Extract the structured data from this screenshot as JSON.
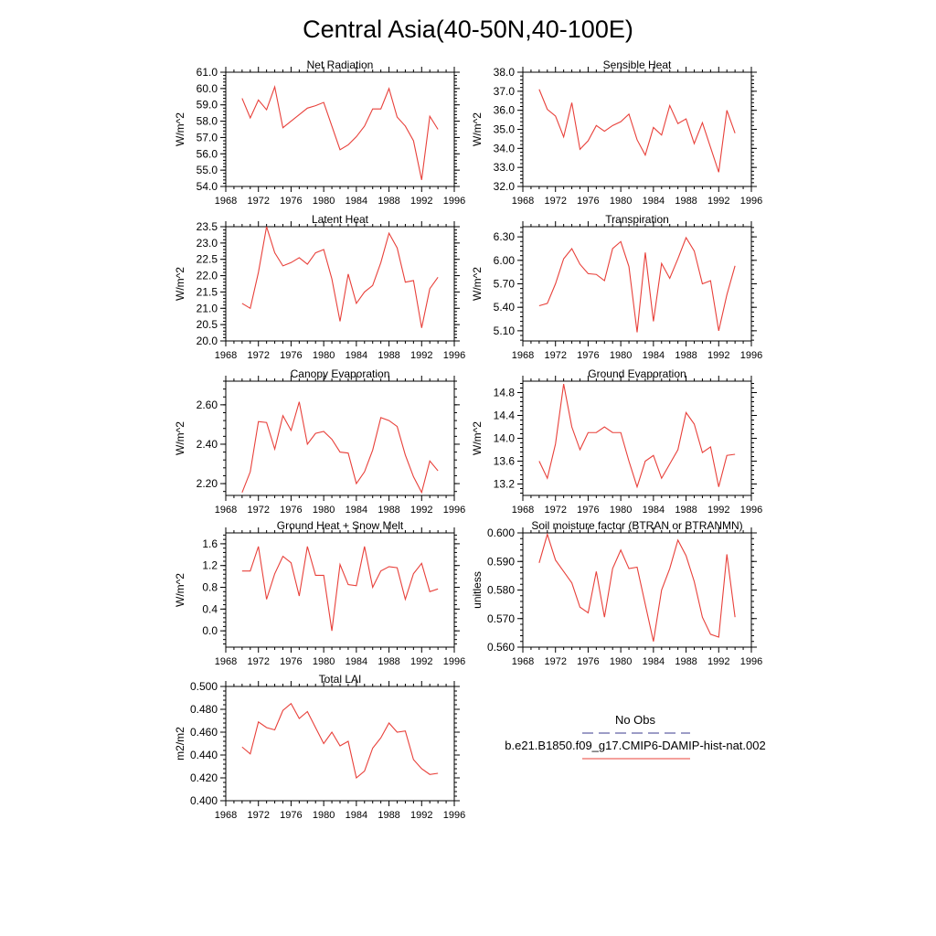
{
  "figure": {
    "title": "Central Asia(40-50N,40-100E)"
  },
  "legend": {
    "entries": [
      {
        "label": "No Obs",
        "color": "#3b3b8f",
        "dash": true
      },
      {
        "label": "b.e21.B1850.f09_g17.CMIP6-DAMIP-hist-nat.002",
        "color": "#e8403a",
        "dash": false
      }
    ]
  },
  "chart_data": [
    {
      "type": "line",
      "title": "Net Radiation",
      "ylabel": "W/m^2",
      "xlim": [
        1968,
        1996
      ],
      "ylim": [
        54.0,
        61.0
      ],
      "xticks": [
        "1968",
        "1972",
        "1976",
        "1980",
        "1984",
        "1988",
        "1992",
        "1996"
      ],
      "yticks": [
        "54.0",
        "55.0",
        "56.0",
        "57.0",
        "58.0",
        "59.0",
        "60.0",
        "61.0"
      ],
      "x": [
        1970,
        1971,
        1972,
        1973,
        1974,
        1975,
        1976,
        1977,
        1978,
        1979,
        1980,
        1981,
        1982,
        1983,
        1984,
        1985,
        1986,
        1987,
        1988,
        1989,
        1990,
        1991,
        1992,
        1993,
        1994
      ],
      "series": [
        {
          "color": "#e8403a",
          "values": [
            59.4,
            58.2,
            59.3,
            58.7,
            60.1,
            57.6,
            58.0,
            58.4,
            58.8,
            58.95,
            59.15,
            57.7,
            56.25,
            56.55,
            57.05,
            57.7,
            58.75,
            58.75,
            60.0,
            58.25,
            57.7,
            56.8,
            54.4,
            58.3,
            57.5
          ]
        }
      ]
    },
    {
      "type": "line",
      "title": "Sensible Heat",
      "ylabel": "W/m^2",
      "xlim": [
        1968,
        1996
      ],
      "ylim": [
        32.0,
        38.0
      ],
      "xticks": [
        "1968",
        "1972",
        "1976",
        "1980",
        "1984",
        "1988",
        "1992",
        "1996"
      ],
      "yticks": [
        "32.0",
        "33.0",
        "34.0",
        "35.0",
        "36.0",
        "37.0",
        "38.0"
      ],
      "x": [
        1970,
        1971,
        1972,
        1973,
        1974,
        1975,
        1976,
        1977,
        1978,
        1979,
        1980,
        1981,
        1982,
        1983,
        1984,
        1985,
        1986,
        1987,
        1988,
        1989,
        1990,
        1991,
        1992,
        1993,
        1994
      ],
      "series": [
        {
          "color": "#e8403a",
          "values": [
            37.1,
            36.05,
            35.7,
            34.6,
            36.4,
            33.95,
            34.4,
            35.2,
            34.9,
            35.2,
            35.4,
            35.8,
            34.45,
            33.65,
            35.1,
            34.7,
            36.25,
            35.3,
            35.55,
            34.25,
            35.35,
            34.05,
            32.75,
            36.0,
            34.8
          ]
        }
      ]
    },
    {
      "type": "line",
      "title": "Latent Heat",
      "ylabel": "W/m^2",
      "xlim": [
        1968,
        1996
      ],
      "ylim": [
        20.0,
        23.5
      ],
      "xticks": [
        "1968",
        "1972",
        "1976",
        "1980",
        "1984",
        "1988",
        "1992",
        "1996"
      ],
      "yticks": [
        "20.0",
        "20.5",
        "21.0",
        "21.5",
        "22.0",
        "22.5",
        "23.0",
        "23.5"
      ],
      "x": [
        1970,
        1971,
        1972,
        1973,
        1974,
        1975,
        1976,
        1977,
        1978,
        1979,
        1980,
        1981,
        1982,
        1983,
        1984,
        1985,
        1986,
        1987,
        1988,
        1989,
        1990,
        1991,
        1992,
        1993,
        1994
      ],
      "series": [
        {
          "color": "#e8403a",
          "values": [
            21.15,
            21.0,
            22.1,
            23.5,
            22.7,
            22.3,
            22.4,
            22.55,
            22.35,
            22.7,
            22.8,
            21.9,
            20.6,
            22.05,
            21.15,
            21.5,
            21.7,
            22.4,
            23.3,
            22.85,
            21.8,
            21.85,
            20.4,
            21.6,
            21.95
          ]
        }
      ]
    },
    {
      "type": "line",
      "title": "Transpiration",
      "ylabel": "W/m^2",
      "xlim": [
        1968,
        1996
      ],
      "ylim": [
        4.97,
        6.43
      ],
      "xticks": [
        "1968",
        "1972",
        "1976",
        "1980",
        "1984",
        "1988",
        "1992",
        "1996"
      ],
      "yticks": [
        "5.10",
        "5.40",
        "5.70",
        "6.00",
        "6.30"
      ],
      "x": [
        1970,
        1971,
        1972,
        1973,
        1974,
        1975,
        1976,
        1977,
        1978,
        1979,
        1980,
        1981,
        1982,
        1983,
        1984,
        1985,
        1986,
        1987,
        1988,
        1989,
        1990,
        1991,
        1992,
        1993,
        1994
      ],
      "series": [
        {
          "color": "#e8403a",
          "values": [
            5.42,
            5.45,
            5.7,
            6.02,
            6.15,
            5.95,
            5.83,
            5.82,
            5.74,
            6.15,
            6.24,
            5.92,
            5.08,
            6.1,
            5.22,
            5.96,
            5.77,
            6.02,
            6.29,
            6.12,
            5.7,
            5.74,
            5.1,
            5.56,
            5.93
          ]
        }
      ]
    },
    {
      "type": "line",
      "title": "Canopy Evaporation",
      "ylabel": "W/m^2",
      "xlim": [
        1968,
        1996
      ],
      "ylim": [
        2.14,
        2.72
      ],
      "xticks": [
        "1968",
        "1972",
        "1976",
        "1980",
        "1984",
        "1988",
        "1992",
        "1996"
      ],
      "yticks": [
        "2.20",
        "2.40",
        "2.60"
      ],
      "x": [
        1970,
        1971,
        1972,
        1973,
        1974,
        1975,
        1976,
        1977,
        1978,
        1979,
        1980,
        1981,
        1982,
        1983,
        1984,
        1985,
        1986,
        1987,
        1988,
        1989,
        1990,
        1991,
        1992,
        1993,
        1994
      ],
      "series": [
        {
          "color": "#e8403a",
          "values": [
            2.155,
            2.26,
            2.515,
            2.51,
            2.375,
            2.545,
            2.47,
            2.615,
            2.4,
            2.455,
            2.465,
            2.425,
            2.36,
            2.355,
            2.2,
            2.26,
            2.37,
            2.535,
            2.52,
            2.49,
            2.345,
            2.235,
            2.155,
            2.315,
            2.265
          ]
        }
      ]
    },
    {
      "type": "line",
      "title": "Ground Evaporation",
      "ylabel": "W/m^2",
      "xlim": [
        1968,
        1996
      ],
      "ylim": [
        13.0,
        15.0
      ],
      "xticks": [
        "1968",
        "1972",
        "1976",
        "1980",
        "1984",
        "1988",
        "1992",
        "1996"
      ],
      "yticks": [
        "13.2",
        "13.6",
        "14.0",
        "14.4",
        "14.8"
      ],
      "x": [
        1970,
        1971,
        1972,
        1973,
        1974,
        1975,
        1976,
        1977,
        1978,
        1979,
        1980,
        1981,
        1982,
        1983,
        1984,
        1985,
        1986,
        1987,
        1988,
        1989,
        1990,
        1991,
        1992,
        1993,
        1994
      ],
      "series": [
        {
          "color": "#e8403a",
          "values": [
            13.6,
            13.3,
            13.9,
            14.95,
            14.2,
            13.8,
            14.1,
            14.1,
            14.2,
            14.1,
            14.1,
            13.6,
            13.15,
            13.6,
            13.7,
            13.3,
            13.55,
            13.8,
            14.45,
            14.25,
            13.75,
            13.85,
            13.15,
            13.7,
            13.72
          ]
        }
      ]
    },
    {
      "type": "line",
      "title": "Ground Heat + Snow Melt",
      "ylabel": "W/m^2",
      "xlim": [
        1968,
        1996
      ],
      "ylim": [
        -0.3,
        1.8
      ],
      "xticks": [
        "1968",
        "1972",
        "1976",
        "1980",
        "1984",
        "1988",
        "1992",
        "1996"
      ],
      "yticks": [
        "0.0",
        "0.4",
        "0.8",
        "1.2",
        "1.6"
      ],
      "x": [
        1970,
        1971,
        1972,
        1973,
        1974,
        1975,
        1976,
        1977,
        1978,
        1979,
        1980,
        1981,
        1982,
        1983,
        1984,
        1985,
        1986,
        1987,
        1988,
        1989,
        1990,
        1991,
        1992,
        1993,
        1994
      ],
      "series": [
        {
          "color": "#e8403a",
          "values": [
            1.1,
            1.1,
            1.55,
            0.58,
            1.05,
            1.37,
            1.25,
            0.64,
            1.55,
            1.02,
            1.02,
            0.0,
            1.22,
            0.85,
            0.83,
            1.55,
            0.8,
            1.1,
            1.18,
            1.16,
            0.58,
            1.05,
            1.24,
            0.72,
            0.77
          ]
        }
      ]
    },
    {
      "type": "line",
      "title": "Soil moisture factor (BTRAN or BTRANMN)",
      "ylabel": "unitless",
      "xlim": [
        1968,
        1996
      ],
      "ylim": [
        0.56,
        0.6
      ],
      "xticks": [
        "1968",
        "1972",
        "1976",
        "1980",
        "1984",
        "1988",
        "1992",
        "1996"
      ],
      "yticks": [
        "0.560",
        "0.570",
        "0.580",
        "0.590",
        "0.600"
      ],
      "x": [
        1970,
        1971,
        1972,
        1973,
        1974,
        1975,
        1976,
        1977,
        1978,
        1979,
        1980,
        1981,
        1982,
        1983,
        1984,
        1985,
        1986,
        1987,
        1988,
        1989,
        1990,
        1991,
        1992,
        1993,
        1994
      ],
      "series": [
        {
          "color": "#e8403a",
          "values": [
            0.5895,
            0.5995,
            0.5905,
            0.5865,
            0.5825,
            0.574,
            0.572,
            0.5865,
            0.5705,
            0.5875,
            0.594,
            0.5875,
            0.588,
            0.575,
            0.562,
            0.58,
            0.5875,
            0.5975,
            0.592,
            0.583,
            0.5705,
            0.5645,
            0.5635,
            0.5925,
            0.5705
          ]
        }
      ]
    },
    {
      "type": "line",
      "title": "Total LAI",
      "ylabel": "m2/m2",
      "xlim": [
        1968,
        1996
      ],
      "ylim": [
        0.4,
        0.5
      ],
      "xticks": [
        "1968",
        "1972",
        "1976",
        "1980",
        "1984",
        "1988",
        "1992",
        "1996"
      ],
      "yticks": [
        "0.400",
        "0.420",
        "0.440",
        "0.460",
        "0.480",
        "0.500"
      ],
      "x": [
        1970,
        1971,
        1972,
        1973,
        1974,
        1975,
        1976,
        1977,
        1978,
        1979,
        1980,
        1981,
        1982,
        1983,
        1984,
        1985,
        1986,
        1987,
        1988,
        1989,
        1990,
        1991,
        1992,
        1993,
        1994
      ],
      "series": [
        {
          "color": "#e8403a",
          "values": [
            0.447,
            0.441,
            0.469,
            0.464,
            0.462,
            0.479,
            0.485,
            0.472,
            0.478,
            0.464,
            0.45,
            0.46,
            0.448,
            0.452,
            0.42,
            0.426,
            0.446,
            0.455,
            0.468,
            0.46,
            0.461,
            0.436,
            0.428,
            0.423,
            0.424
          ]
        }
      ]
    }
  ]
}
